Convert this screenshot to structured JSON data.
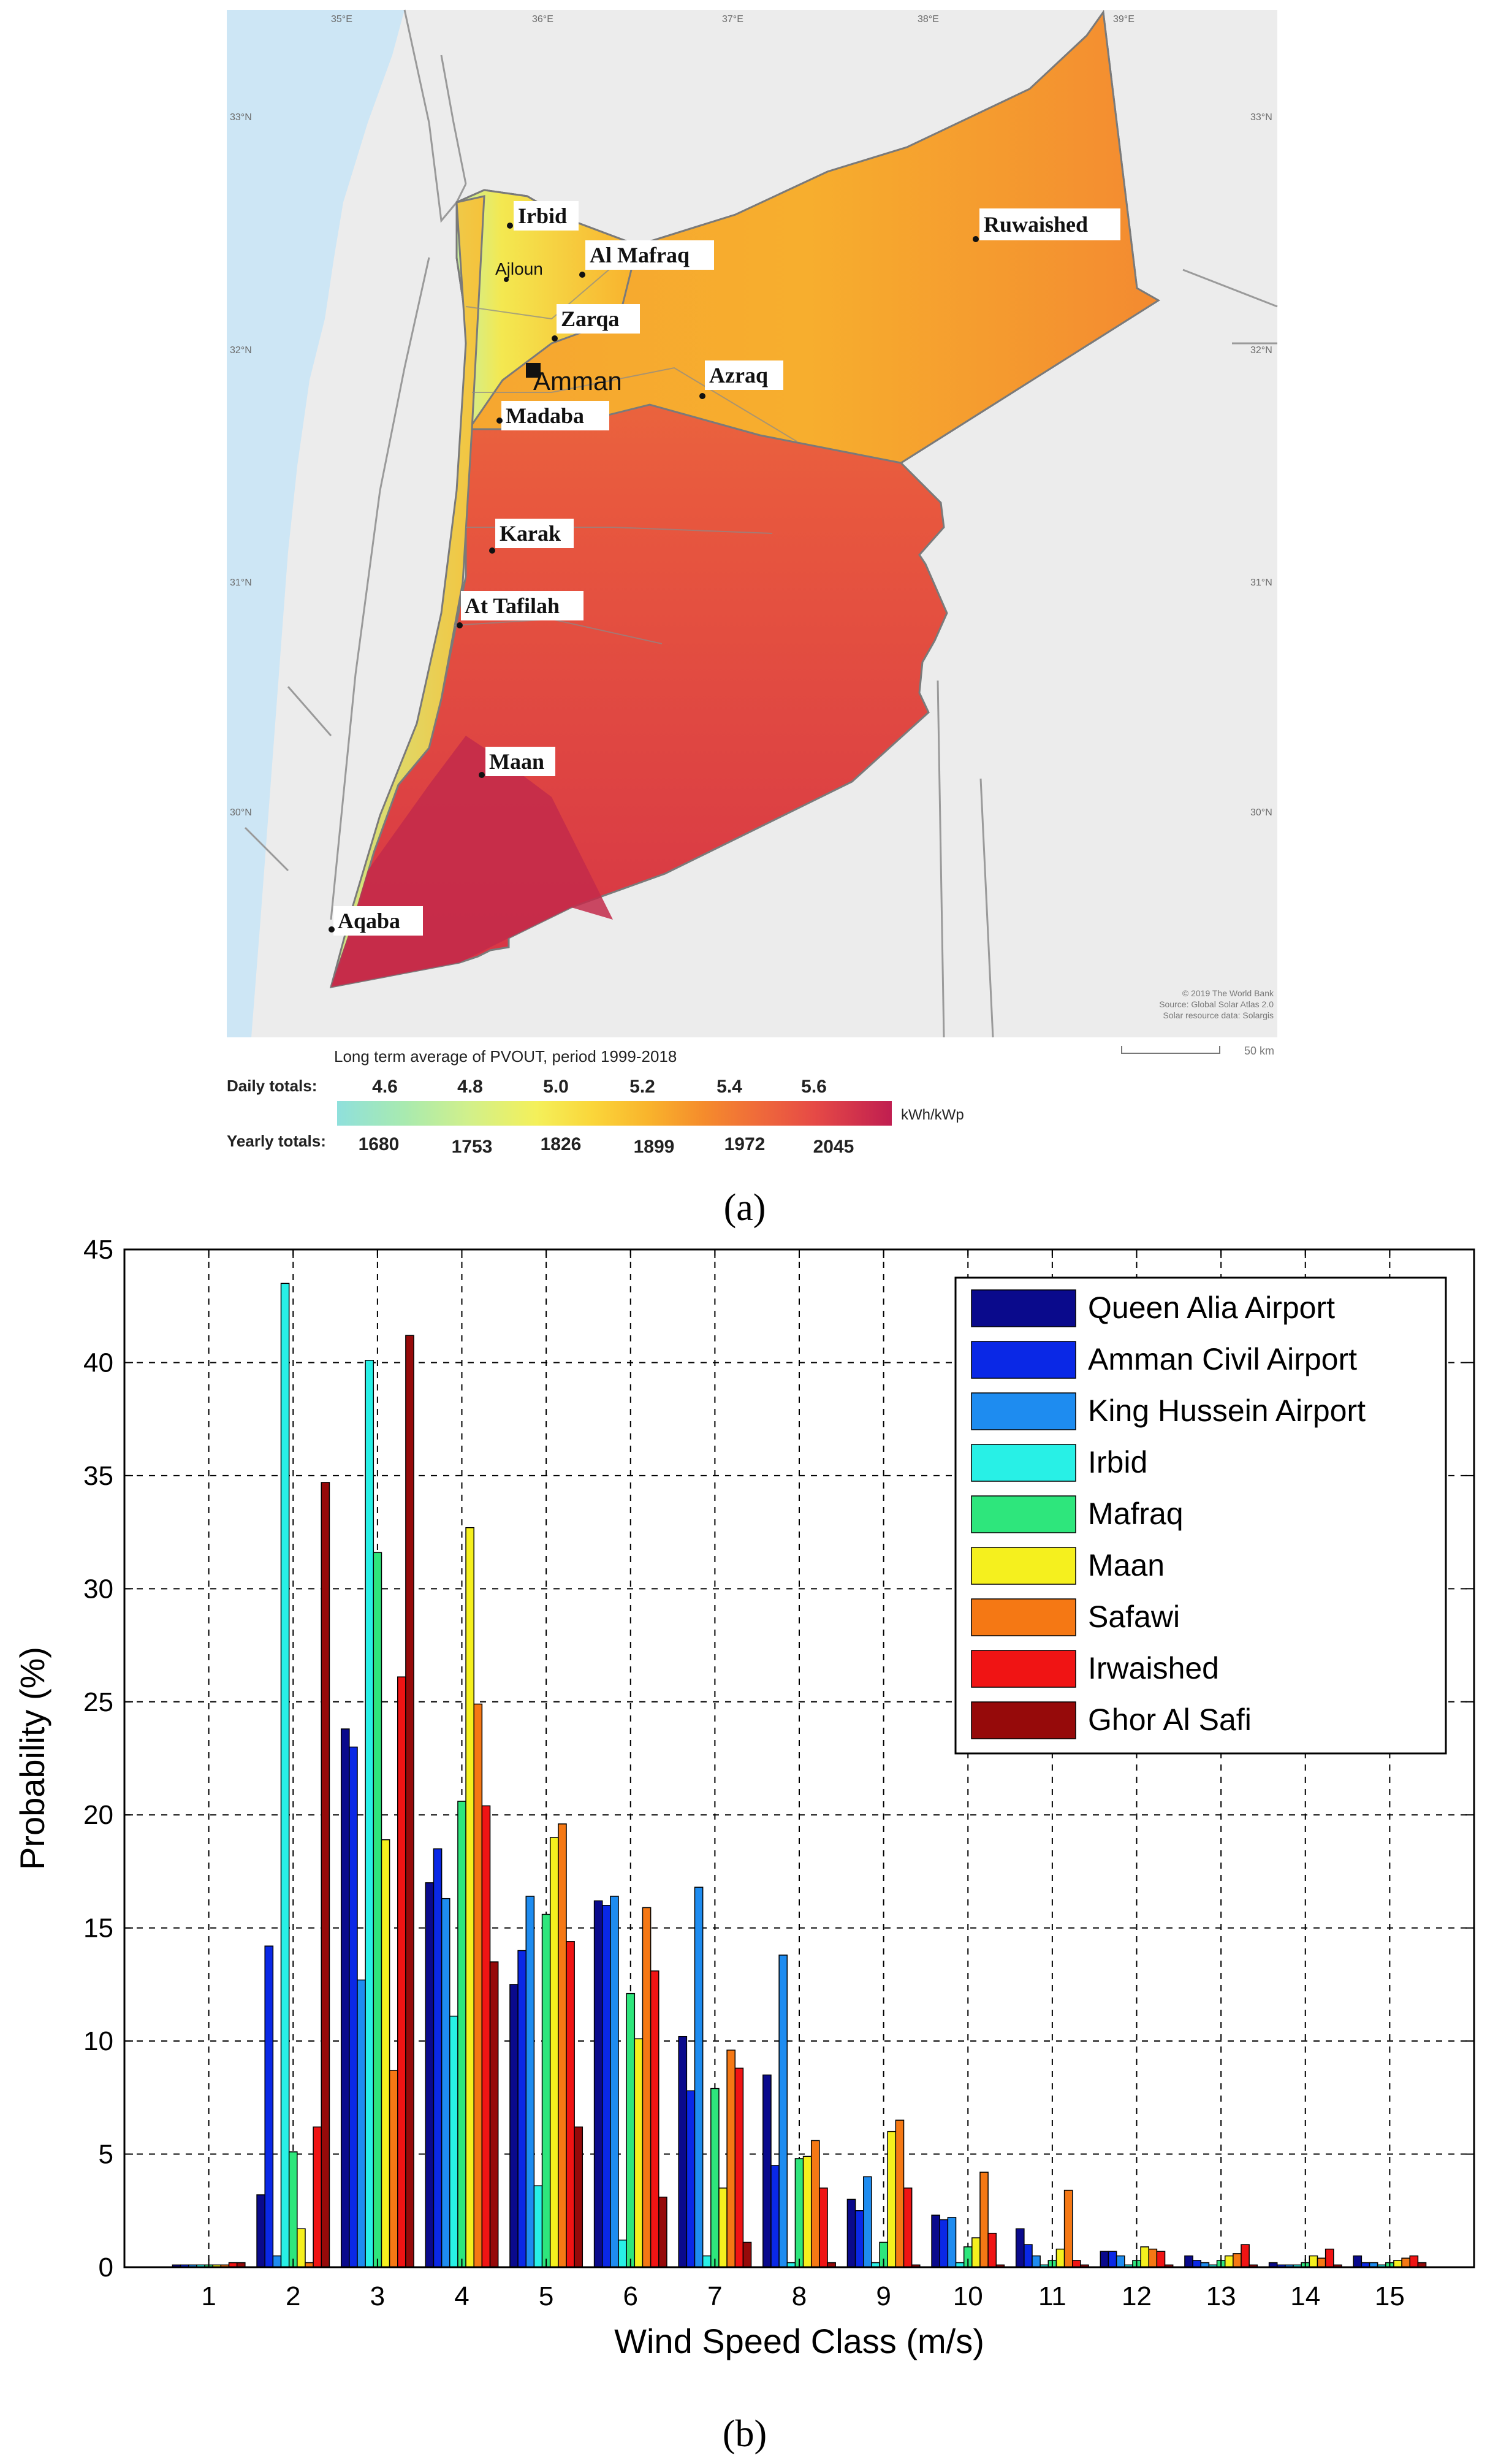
{
  "panel_a": {
    "label": "(a)",
    "cities": [
      "Irbid",
      "Ajloun",
      "Al Mafraq",
      "Zarqa",
      "Amman",
      "Azraq",
      "Madaba",
      "Ruwaished",
      "Karak",
      "At Tafilah",
      "Maan",
      "Aqaba"
    ],
    "lon_labels": [
      "35°E",
      "36°E",
      "37°E",
      "38°E",
      "39°E"
    ],
    "lat_labels": [
      "33°N",
      "32°N",
      "31°N",
      "30°N"
    ],
    "credits": [
      "© 2019 The World Bank",
      "Source: Global Solar Atlas 2.0",
      "Solar resource data: Solargis"
    ],
    "scale_label": "50 km",
    "legend": {
      "title": "Long term average of PVOUT, period 1999-2018",
      "daily_label": "Daily totals:",
      "daily_values": [
        "4.6",
        "4.8",
        "5.0",
        "5.2",
        "5.4",
        "5.6"
      ],
      "yearly_label": "Yearly totals:",
      "yearly_values": [
        "1680",
        "1753",
        "1826",
        "1899",
        "1972",
        "2045"
      ],
      "unit": "kWh/kWp",
      "colors": [
        "#8fe0dc",
        "#a8eab0",
        "#d2f08a",
        "#f4f05a",
        "#fad63a",
        "#f9b42c",
        "#f58c2c",
        "#ef6a3a",
        "#e64a46",
        "#d6324c",
        "#c01e50"
      ]
    }
  },
  "panel_b": {
    "label": "(b)"
  },
  "chart_data": {
    "type": "bar",
    "title": "",
    "xlabel": "Wind Speed Class (m/s)",
    "ylabel": "Probability (%)",
    "ylim": [
      0,
      45
    ],
    "yticks": [
      0,
      5,
      10,
      15,
      20,
      25,
      30,
      35,
      40,
      45
    ],
    "grid": true,
    "legend_position": "top-right",
    "categories": [
      "1",
      "2",
      "3",
      "4",
      "5",
      "6",
      "7",
      "8",
      "9",
      "10",
      "11",
      "12",
      "13",
      "14",
      "15"
    ],
    "series": [
      {
        "name": "Queen Alia Airport",
        "color": "#0a0a8c",
        "values": [
          0.1,
          3.2,
          23.8,
          17.0,
          12.5,
          16.2,
          10.2,
          8.5,
          3.0,
          2.3,
          1.7,
          0.7,
          0.5,
          0.2,
          0.5
        ]
      },
      {
        "name": "Amman Civil Airport",
        "color": "#0a28e6",
        "values": [
          0.1,
          14.2,
          23.0,
          18.5,
          14.0,
          16.0,
          7.8,
          4.5,
          2.5,
          2.1,
          1.0,
          0.7,
          0.3,
          0.1,
          0.2
        ]
      },
      {
        "name": "King Hussein Airport",
        "color": "#1e8cf0",
        "values": [
          0.1,
          0.5,
          12.7,
          16.3,
          16.4,
          16.4,
          16.8,
          13.8,
          4.0,
          2.2,
          0.5,
          0.5,
          0.2,
          0.1,
          0.2
        ]
      },
      {
        "name": "Irbid",
        "color": "#28f0e6",
        "values": [
          0.1,
          43.5,
          40.1,
          11.1,
          3.6,
          1.2,
          0.5,
          0.2,
          0.2,
          0.2,
          0.1,
          0.1,
          0.1,
          0.1,
          0.1
        ]
      },
      {
        "name": "Mafraq",
        "color": "#2ee67c",
        "values": [
          0.1,
          5.1,
          31.6,
          20.6,
          15.6,
          12.1,
          7.9,
          4.8,
          1.1,
          0.9,
          0.3,
          0.3,
          0.3,
          0.2,
          0.2
        ]
      },
      {
        "name": "Maan",
        "color": "#f5f01e",
        "values": [
          0.1,
          1.7,
          18.9,
          32.7,
          19.0,
          10.1,
          3.5,
          4.9,
          6.0,
          1.3,
          0.8,
          0.9,
          0.5,
          0.5,
          0.3
        ]
      },
      {
        "name": "Safawi",
        "color": "#f57814",
        "values": [
          0.1,
          0.2,
          8.7,
          24.9,
          19.6,
          15.9,
          9.6,
          5.6,
          6.5,
          4.2,
          3.4,
          0.8,
          0.6,
          0.4,
          0.4
        ]
      },
      {
        "name": "Irwaished",
        "color": "#f01414",
        "values": [
          0.2,
          6.2,
          26.1,
          20.4,
          14.4,
          13.1,
          8.8,
          3.5,
          3.5,
          1.5,
          0.3,
          0.7,
          1.0,
          0.8,
          0.5
        ]
      },
      {
        "name": "Ghor Al Safi",
        "color": "#960a0a",
        "values": [
          0.2,
          34.7,
          41.2,
          13.5,
          6.2,
          3.1,
          1.1,
          0.2,
          0.1,
          0.1,
          0.1,
          0.1,
          0.1,
          0.1,
          0.2
        ]
      }
    ]
  }
}
